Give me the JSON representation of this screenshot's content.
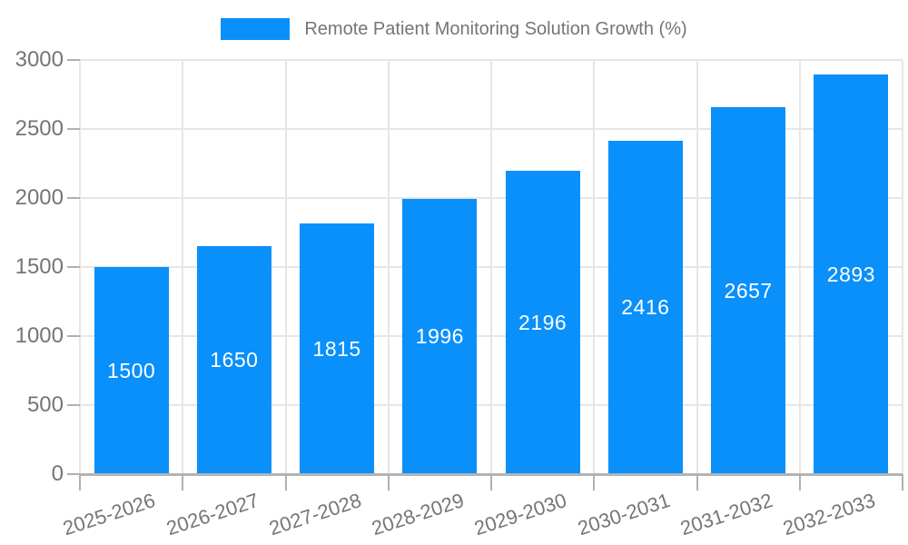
{
  "chart_data": {
    "type": "bar",
    "legend": "Remote Patient Monitoring Solution Growth (%)",
    "legend_position": "top-center",
    "categories": [
      "2025-2026",
      "2026-2027",
      "2027-2028",
      "2028-2029",
      "2029-2030",
      "2030-2031",
      "2031-2032",
      "2032-2033"
    ],
    "series": [
      {
        "name": "Remote Patient Monitoring Solution Growth (%)",
        "values": [
          1500,
          1650,
          1815,
          1996,
          2196,
          2416,
          2657,
          2893
        ]
      }
    ],
    "bar_value_labels": [
      "1500",
      "1650",
      "1815",
      "1996",
      "2196",
      "2416",
      "2657",
      "2893"
    ],
    "xlabel": "",
    "ylabel": "",
    "ylim": [
      0,
      3000
    ],
    "yticks": [
      0,
      500,
      1000,
      1500,
      2000,
      2500,
      3000
    ],
    "grid": "horizontal and vertical category boundaries",
    "xlabel_rotation_deg": -18,
    "colors": {
      "bar": "#0990fb",
      "bar_label_text": "#ffffff",
      "axis_text": "#757575",
      "gridline": "#e6e6e6",
      "axis_line": "#b3b3b3",
      "tick_mark": "#b0b0b0",
      "background": "#ffffff"
    }
  }
}
